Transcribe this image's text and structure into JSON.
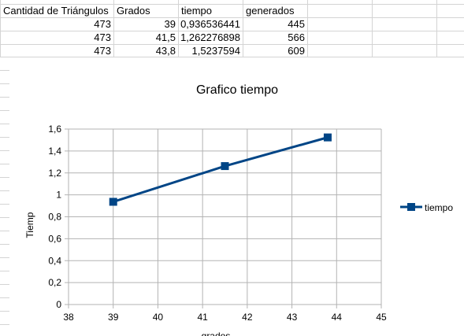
{
  "spreadsheet": {
    "headers": [
      "Cantidad de Triángulos",
      "Grados",
      "tiempo",
      "generados"
    ],
    "rows": [
      [
        "473",
        "39",
        "0,936536441",
        "445"
      ],
      [
        "473",
        "41,5",
        "1,262276898",
        "566"
      ],
      [
        "473",
        "43,8",
        "1,5237594",
        "609"
      ]
    ]
  },
  "chart_data": {
    "type": "scatter",
    "title": "Grafico tiempo",
    "xlabel": "grados",
    "ylabel": "Tiemp",
    "xlim": [
      38,
      45
    ],
    "ylim": [
      0,
      1.6
    ],
    "x_ticks": [
      "38",
      "39",
      "40",
      "41",
      "42",
      "43",
      "44",
      "45"
    ],
    "y_ticks": [
      "0",
      "0,2",
      "0,4",
      "0,6",
      "0,8",
      "1",
      "1,2",
      "1,4",
      "1,6"
    ],
    "grid": true,
    "legend_position": "right",
    "series": [
      {
        "name": "tiempo",
        "color": "#004586",
        "marker": "square",
        "x": [
          39,
          41.5,
          43.8
        ],
        "y": [
          0.936536441,
          1.262276898,
          1.5237594
        ]
      }
    ]
  }
}
